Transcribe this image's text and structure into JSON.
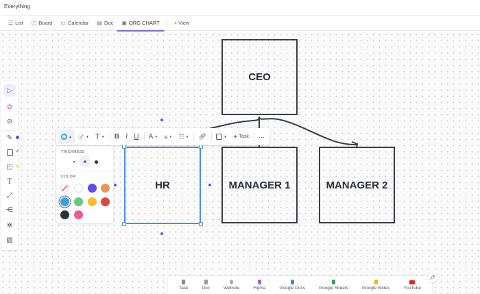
{
  "app": {
    "title": "Everything"
  },
  "tabs": [
    {
      "label": "List",
      "icon": "list-icon"
    },
    {
      "label": "Board",
      "icon": "board-icon"
    },
    {
      "label": "Calendar",
      "icon": "calendar-icon"
    },
    {
      "label": "Doc",
      "icon": "doc-icon"
    },
    {
      "label": "ORG CHART",
      "icon": "whiteboard-icon",
      "active": true
    },
    {
      "label": "+ View",
      "icon": "plus-icon"
    }
  ],
  "nodes": {
    "ceo": "CEO",
    "hr": "HR",
    "manager1": "MANAGER 1",
    "manager2": "MANAGER 2"
  },
  "toolbar": {
    "task_label": "Task",
    "bold": "B",
    "italic": "I",
    "underline": "U",
    "font": "A",
    "text": "T",
    "more": "···"
  },
  "panel": {
    "thickness_label": "THICKNESS",
    "thickness_options": [
      "thin",
      "medium",
      "thick"
    ],
    "thickness_selected": "medium",
    "color_label": "COLOR",
    "colors": [
      "none",
      "#ffffff",
      "#5b4fe9",
      "#e8955a",
      "#3aa0e6",
      "#6bc77f",
      "#f7be2c",
      "#e0483e",
      "#2f3237",
      "#ec5a96"
    ],
    "color_selected": "#3aa0e6"
  },
  "left_tools": [
    "select",
    "ai",
    "link",
    "pen",
    "rectangle",
    "sticky-note",
    "text",
    "connector",
    "mindmap",
    "magic",
    "image"
  ],
  "bottom": [
    {
      "label": "Task",
      "color": "#888"
    },
    {
      "label": "Doc",
      "color": "#888"
    },
    {
      "label": "Website",
      "color": "#888"
    },
    {
      "label": "Figma",
      "color": "#f24e1e"
    },
    {
      "label": "Google Docs",
      "color": "#4285f4"
    },
    {
      "label": "Google Sheets",
      "color": "#34a853"
    },
    {
      "label": "Google Slides",
      "color": "#f4b400"
    },
    {
      "label": "YouTube",
      "color": "#e62117"
    }
  ],
  "colors": {
    "accent": "#7b68ee",
    "selection": "#4a8cf0",
    "node_border": "#3a3d42"
  }
}
